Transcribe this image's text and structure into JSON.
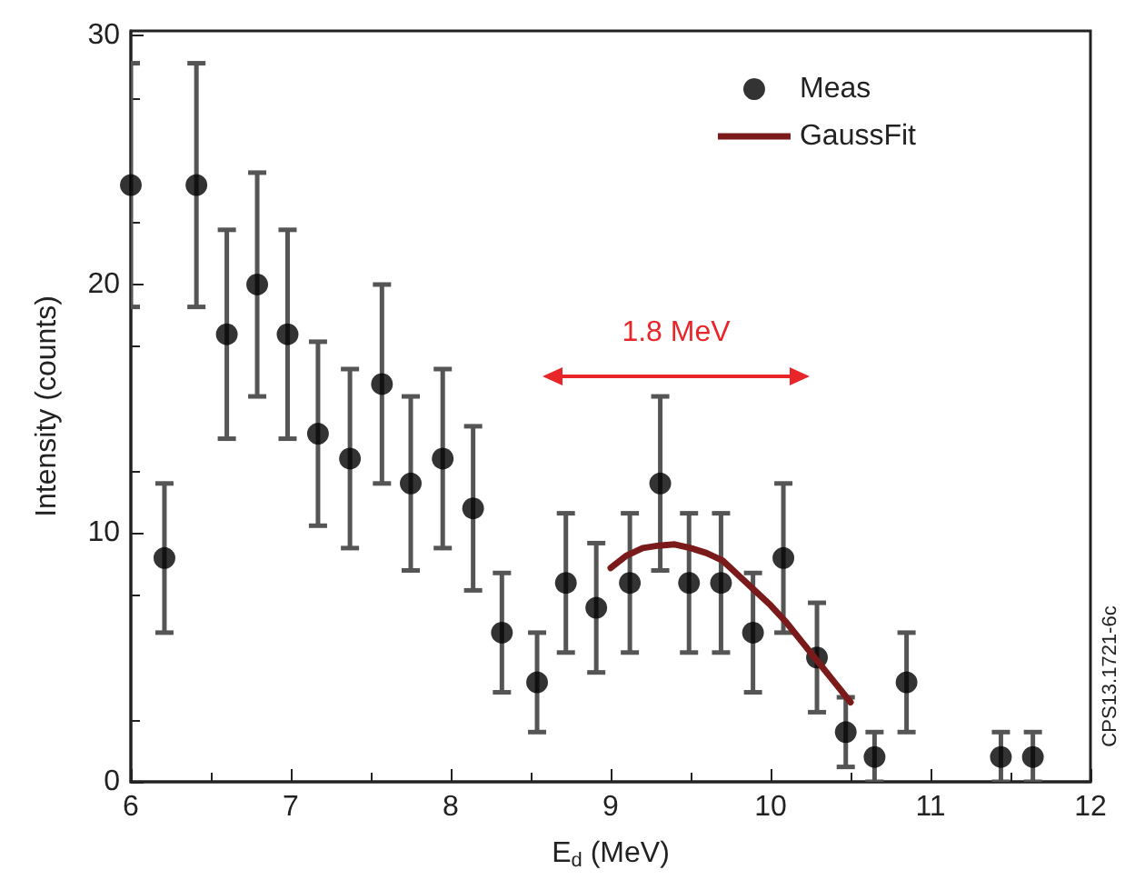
{
  "chart_data": {
    "type": "scatter",
    "xlabel": "E$_{d}$ (MeV)",
    "ylabel": "Intensity (counts)",
    "xlim": [
      6,
      12
    ],
    "xticks": [
      6,
      7,
      8,
      9,
      10,
      11,
      12
    ],
    "ylim": [
      0,
      30.2
    ],
    "yticks": [
      0,
      10,
      20,
      30
    ],
    "grid": false,
    "legend": "top right",
    "series": [
      {
        "name": "Meas",
        "color": "#000000",
        "marker": "circle",
        "x": [
          6.0,
          6.21,
          6.41,
          6.6,
          6.79,
          6.98,
          7.17,
          7.37,
          7.57,
          7.75,
          7.95,
          8.14,
          8.32,
          8.54,
          8.72,
          8.91,
          9.12,
          9.31,
          9.49,
          9.69,
          9.89,
          10.08,
          10.29,
          10.47,
          10.65,
          10.85,
          11.44,
          11.64
        ],
        "values": [
          24,
          9,
          24,
          18,
          20,
          18,
          14,
          13,
          16,
          12,
          13,
          11,
          6,
          4,
          8,
          7,
          8,
          12,
          8,
          8,
          6,
          9,
          5,
          2,
          1,
          4,
          1,
          1
        ],
        "errors": [
          4.9,
          3,
          4.9,
          4.2,
          4.5,
          4.2,
          3.7,
          3.6,
          4,
          3.5,
          3.6,
          3.3,
          2.4,
          2,
          2.8,
          2.6,
          2.8,
          3.5,
          2.8,
          2.8,
          2.4,
          3,
          2.2,
          1.4,
          1,
          2,
          1,
          1
        ]
      },
      {
        "name": "GaussFit",
        "type": "line",
        "color": "#7b1a1a",
        "marker": "none",
        "line_style": "solid",
        "x": [
          9.0,
          9.1,
          9.2,
          9.3,
          9.4,
          9.5,
          9.6,
          9.7,
          9.8,
          9.9,
          10.0,
          10.1,
          10.2,
          10.3,
          10.4,
          10.5
        ],
        "values": [
          8.6,
          9.1,
          9.4,
          9.5,
          9.55,
          9.4,
          9.2,
          8.9,
          8.3,
          7.7,
          7.1,
          6.4,
          5.6,
          4.8,
          4.0,
          3.2
        ]
      }
    ],
    "annotations": [
      "1.8 MeV",
      "CPS13.1721-6c"
    ]
  }
}
